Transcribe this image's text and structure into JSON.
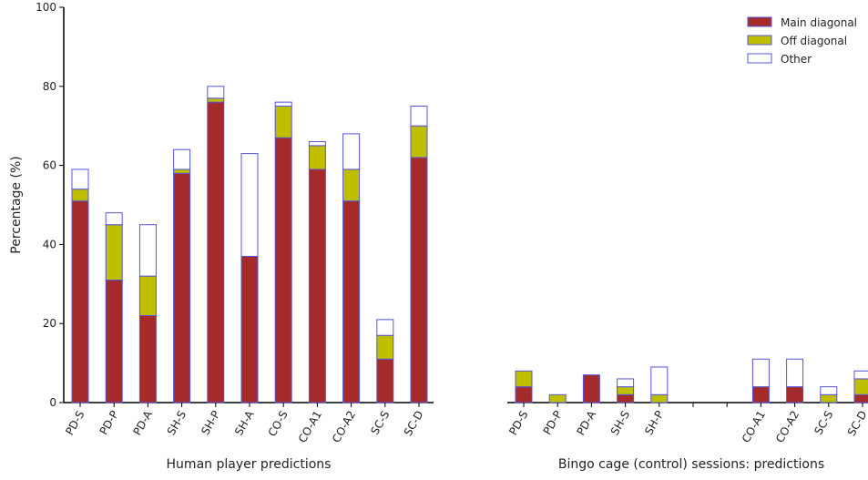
{
  "chart_data": [
    {
      "type": "bar",
      "stacked": true,
      "xlabel": "Human player predictions",
      "ylabel": "Percentage (%)",
      "ylim": [
        0,
        100
      ],
      "yticks": [
        "0",
        "20",
        "40",
        "60",
        "80",
        "100"
      ],
      "categories": [
        "PD-S",
        "PD-P",
        "PD-A",
        "SH-S",
        "SH-P",
        "SH-A",
        "CO-S",
        "CO-A1",
        "CO-A2",
        "SC-S",
        "SC-D"
      ],
      "series": [
        {
          "name": "Main diagonal",
          "color": "#a52a2a",
          "values": [
            51,
            31,
            22,
            58,
            76,
            37,
            67,
            59,
            51,
            11,
            62
          ]
        },
        {
          "name": "Off diagonal",
          "color": "#bfbf00",
          "values": [
            3,
            14,
            10,
            1,
            1,
            0,
            8,
            6,
            8,
            6,
            8
          ]
        },
        {
          "name": "Other",
          "color": "#ffffff",
          "values": [
            5,
            3,
            13,
            5,
            3,
            26,
            1,
            1,
            9,
            4,
            5
          ]
        }
      ],
      "grid": false
    },
    {
      "type": "bar",
      "stacked": true,
      "xlabel": "Bingo cage (control) sessions: predictions",
      "ylim": [
        0,
        100
      ],
      "categories": [
        "PD-S",
        "PD-P",
        "PD-A",
        "SH-S",
        "SH-P",
        "",
        "",
        "CO-A1",
        "CO-A2",
        "SC-S",
        "SC-D"
      ],
      "series": [
        {
          "name": "Main diagonal",
          "color": "#a52a2a",
          "values": [
            4,
            0,
            7,
            2,
            0,
            0,
            0,
            4,
            4,
            0,
            2
          ]
        },
        {
          "name": "Off diagonal",
          "color": "#bfbf00",
          "values": [
            4,
            2,
            0,
            2,
            2,
            0,
            0,
            0,
            0,
            2,
            4
          ]
        },
        {
          "name": "Other",
          "color": "#ffffff",
          "values": [
            0,
            0,
            0,
            2,
            7,
            0,
            0,
            7,
            7,
            2,
            2
          ]
        }
      ],
      "legend_position": "top-right",
      "grid": false
    }
  ],
  "edge_color": "#5555dd"
}
